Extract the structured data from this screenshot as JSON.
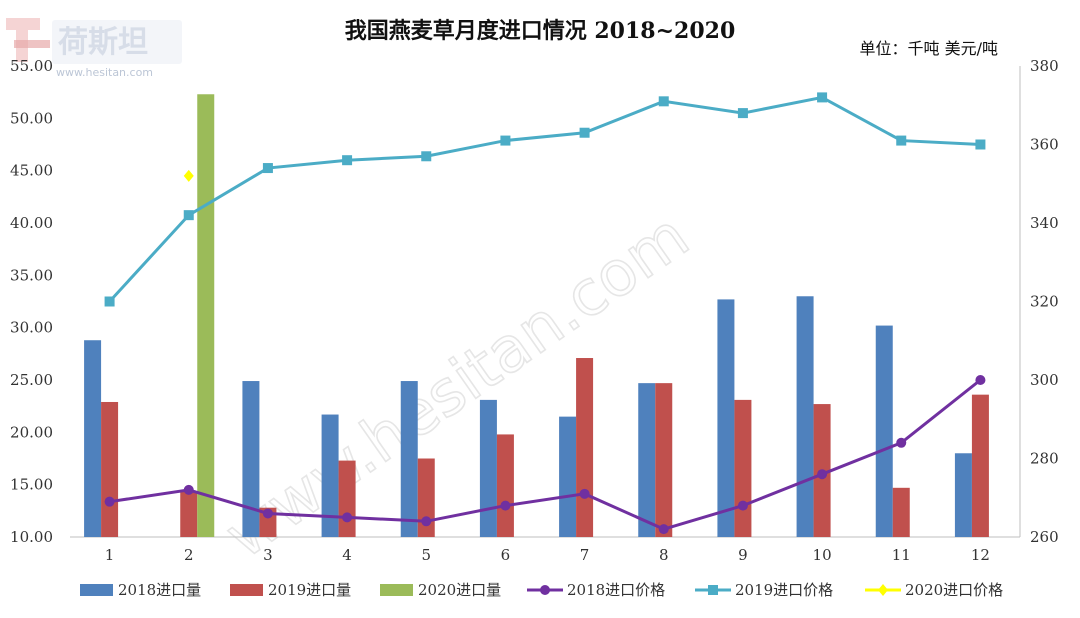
{
  "logo": {
    "text": "荷斯坦",
    "site": "www.hesitan.com"
  },
  "watermark": "www.hesitan.com",
  "chart_data": {
    "type": "bar",
    "title": "我国燕麦草月度进口情况 2018~2020",
    "unit_label": "单位：千吨   美元/吨",
    "categories": [
      "1",
      "2",
      "3",
      "4",
      "5",
      "6",
      "7",
      "8",
      "9",
      "10",
      "11",
      "12"
    ],
    "y_left": {
      "min": 10,
      "max": 55,
      "step": 5,
      "tick_labels": [
        "10.00",
        "15.00",
        "20.00",
        "25.00",
        "30.00",
        "35.00",
        "40.00",
        "45.00",
        "50.00",
        "55.00"
      ]
    },
    "y_right": {
      "min": 260,
      "max": 380,
      "step": 20,
      "tick_labels": [
        "260",
        "280",
        "300",
        "320",
        "340",
        "360",
        "380"
      ]
    },
    "bar_series": [
      {
        "name": "2018进口量",
        "color": "#4F81BD",
        "values": [
          28.8,
          null,
          24.9,
          21.7,
          24.9,
          23.1,
          21.5,
          24.7,
          32.7,
          33.0,
          30.2,
          18.0
        ]
      },
      {
        "name": "2019进口量",
        "color": "#C0504D",
        "values": [
          22.9,
          14.3,
          12.8,
          17.3,
          17.5,
          19.8,
          27.1,
          24.7,
          23.1,
          22.7,
          14.7,
          23.6
        ]
      },
      {
        "name": "2020进口量",
        "color": "#9BBB59",
        "values": [
          null,
          52.3,
          null,
          null,
          null,
          null,
          null,
          null,
          null,
          null,
          null,
          null
        ]
      }
    ],
    "line_series": [
      {
        "name": "2018进口价格",
        "color": "#7030A0",
        "marker": "circle",
        "values": [
          269,
          272,
          266,
          265,
          264,
          268,
          271,
          262,
          268,
          276,
          284,
          300
        ]
      },
      {
        "name": "2019进口价格",
        "color": "#4BACC6",
        "marker": "square",
        "values": [
          320,
          342,
          354,
          356,
          357,
          361,
          363,
          371,
          368,
          372,
          361,
          360
        ]
      },
      {
        "name": "2020进口价格",
        "color": "#FFFF00",
        "marker": "diamond",
        "values": [
          null,
          352,
          null,
          null,
          null,
          null,
          null,
          null,
          null,
          null,
          null,
          null
        ]
      }
    ],
    "legend": {
      "position": "bottom",
      "items": [
        "2018进口量",
        "2019进口量",
        "2020进口量",
        "2018进口价格",
        "2019进口价格",
        "2020进口价格"
      ]
    },
    "grid": false
  }
}
